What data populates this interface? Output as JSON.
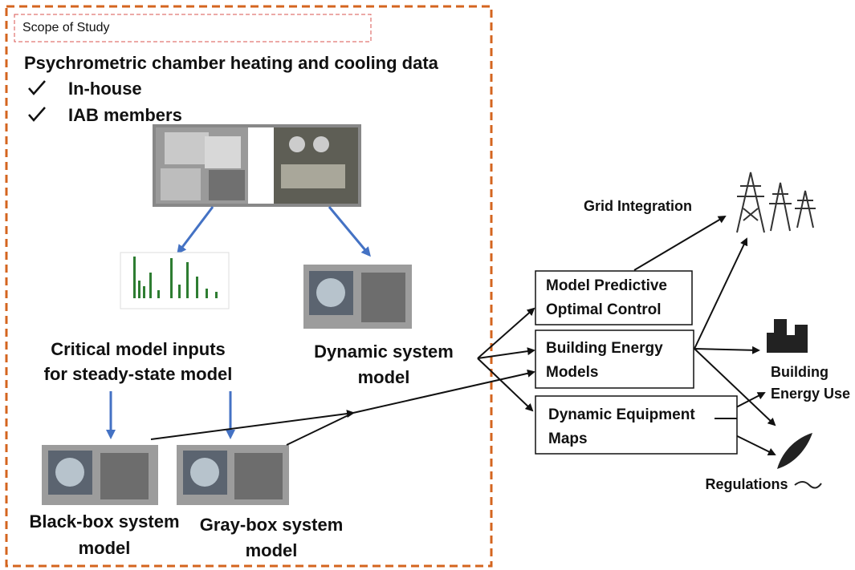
{
  "scope_label": "Scope of Study",
  "heading": "Psychrometric chamber heating and cooling data",
  "checklist": [
    "In-house",
    "IAB members"
  ],
  "nodes": [
    {
      "lines": [
        "Critical model inputs",
        "for steady-state model"
      ]
    },
    {
      "lines": [
        "Dynamic system",
        "model"
      ]
    },
    {
      "lines": [
        "Black-box system",
        "model"
      ]
    },
    {
      "lines": [
        "Gray-box system",
        "model"
      ]
    },
    {
      "lines": [
        "Model Predictive",
        "Optimal Control"
      ]
    },
    {
      "lines": [
        "Building Energy",
        "Models"
      ]
    },
    {
      "lines": [
        "Dynamic Equipment",
        "Maps"
      ]
    },
    {
      "lines": [
        "Grid Integration"
      ]
    },
    {
      "lines": [
        "Building",
        "Energy Use"
      ]
    },
    {
      "lines": [
        "Regulations"
      ]
    }
  ]
}
